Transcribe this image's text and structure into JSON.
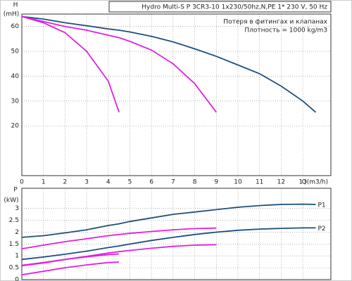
{
  "chart_data": [
    {
      "type": "line",
      "header": "Hydro Multi-S P 3CR3-10 1x230/50hz,N,PE    1* 230 V, 50 Hz",
      "annotations": [
        "Потеря в фитингах и клапанах",
        "Плотность = 1000 kg/m3"
      ],
      "ylabel": [
        "H",
        "(mH)"
      ],
      "xlabel": "Q(m3/h)",
      "x": [
        0,
        1,
        2,
        3,
        4,
        4.5,
        5,
        6,
        7,
        8,
        9,
        10,
        11,
        12,
        13,
        13.6
      ],
      "xlim": [
        0,
        14.3
      ],
      "ylim": [
        0,
        65
      ],
      "xticks": [
        0,
        1,
        2,
        3,
        4,
        5,
        6,
        7,
        8,
        9,
        10,
        11,
        12,
        13
      ],
      "yticks": [
        20,
        30,
        40,
        50,
        60
      ],
      "grid": true,
      "xtick_labels": true,
      "series": [
        {
          "color": "#1b4f7c",
          "values": [
            64,
            63,
            61.5,
            60.3,
            59,
            58.5,
            57.8,
            56,
            53.8,
            51,
            48,
            44.5,
            41,
            36,
            30,
            25.5
          ]
        },
        {
          "color": "#e020e0",
          "values": [
            64,
            62,
            60,
            58.5,
            56.5,
            55.5,
            54,
            50.5,
            45,
            37,
            25.5,
            null,
            null,
            null,
            null,
            null
          ]
        },
        {
          "color": "#e020e0",
          "values": [
            64,
            61.5,
            57.5,
            50,
            38,
            25.5,
            null,
            null,
            null,
            null,
            null,
            null,
            null,
            null,
            null,
            null
          ]
        }
      ]
    },
    {
      "type": "line",
      "ylabel": [
        "P",
        "(kW)"
      ],
      "x": [
        0,
        1,
        2,
        3,
        4,
        4.5,
        5,
        6,
        7,
        8,
        9,
        10,
        11,
        12,
        13,
        13.6
      ],
      "xlim": [
        0,
        14.3
      ],
      "ylim": [
        0,
        3.85
      ],
      "xticks": [
        0,
        1,
        2,
        3,
        4,
        5,
        6,
        7,
        8,
        9,
        10,
        11,
        12,
        13
      ],
      "yticks": [
        0,
        0.5,
        1,
        1.5,
        2,
        2.5,
        3
      ],
      "grid": true,
      "xtick_labels": false,
      "series": [
        {
          "name": "P1",
          "color": "#1b4f7c",
          "values": [
            1.78,
            1.85,
            1.97,
            2.1,
            2.28,
            2.35,
            2.45,
            2.6,
            2.75,
            2.85,
            2.95,
            3.05,
            3.12,
            3.17,
            3.18,
            3.17
          ]
        },
        {
          "name": "P2",
          "color": "#1b4f7c",
          "values": [
            0.85,
            0.95,
            1.07,
            1.2,
            1.35,
            1.42,
            1.5,
            1.65,
            1.78,
            1.9,
            2.0,
            2.08,
            2.13,
            2.16,
            2.18,
            2.18
          ]
        },
        {
          "color": "#e020e0",
          "values": [
            1.3,
            1.45,
            1.6,
            1.72,
            1.85,
            1.9,
            1.95,
            2.03,
            2.1,
            2.15,
            2.17,
            null,
            null,
            null,
            null,
            null
          ]
        },
        {
          "color": "#e020e0",
          "values": [
            0.58,
            0.7,
            0.85,
            0.98,
            1.12,
            1.18,
            1.23,
            1.32,
            1.4,
            1.45,
            1.47,
            null,
            null,
            null,
            null,
            null
          ]
        },
        {
          "color": "#e020e0",
          "values": [
            0.6,
            0.72,
            0.85,
            0.96,
            1.05,
            1.08,
            null,
            null,
            null,
            null,
            null,
            null,
            null,
            null,
            null,
            null
          ]
        },
        {
          "color": "#e020e0",
          "values": [
            0.2,
            0.35,
            0.5,
            0.62,
            0.72,
            0.74,
            null,
            null,
            null,
            null,
            null,
            null,
            null,
            null,
            null,
            null
          ]
        }
      ]
    }
  ]
}
